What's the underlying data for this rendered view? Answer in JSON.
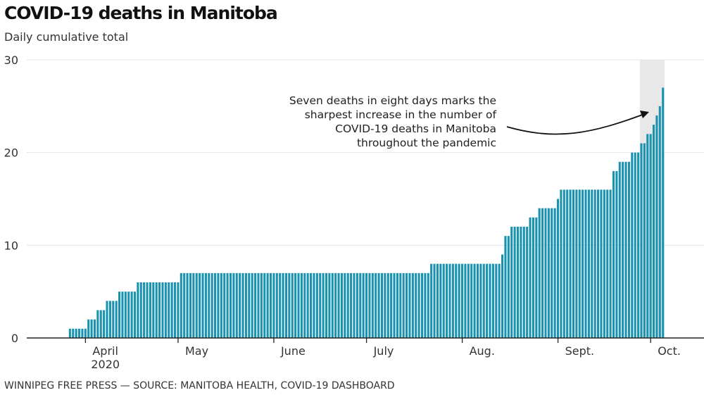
{
  "chart_data": {
    "type": "bar",
    "title": "COVID-19 deaths in Manitoba",
    "subtitle": "Daily cumulative total",
    "source": "WINNIPEG FREE PRESS — SOURCE: MANITOBA HEALTH, COVID-19 DASHBOARD",
    "xlabel": "",
    "ylabel": "",
    "ylim": [
      0,
      30
    ],
    "yticks": [
      0,
      10,
      20,
      30
    ],
    "xlim": [
      "2020-03-13",
      "2020-10-16"
    ],
    "xticks": [
      {
        "date": "2020-04-01",
        "label": "April",
        "sublabel": "2020"
      },
      {
        "date": "2020-05-01",
        "label": "May"
      },
      {
        "date": "2020-06-01",
        "label": "June"
      },
      {
        "date": "2020-07-01",
        "label": "July"
      },
      {
        "date": "2020-08-01",
        "label": "Aug."
      },
      {
        "date": "2020-09-01",
        "label": "Sept."
      },
      {
        "date": "2020-10-01",
        "label": "Oct."
      }
    ],
    "grid": true,
    "bar_color": "#1a93b0",
    "daily_values_from_step_changes": [
      {
        "from": "2020-03-27",
        "value": 1
      },
      {
        "from": "2020-04-02",
        "value": 2
      },
      {
        "from": "2020-04-05",
        "value": 3
      },
      {
        "from": "2020-04-08",
        "value": 4
      },
      {
        "from": "2020-04-12",
        "value": 5
      },
      {
        "from": "2020-04-18",
        "value": 6
      },
      {
        "from": "2020-05-02",
        "value": 7
      },
      {
        "from": "2020-07-22",
        "value": 8
      },
      {
        "from": "2020-08-14",
        "value": 9
      },
      {
        "from": "2020-08-15",
        "value": 11
      },
      {
        "from": "2020-08-17",
        "value": 12
      },
      {
        "from": "2020-08-23",
        "value": 13
      },
      {
        "from": "2020-08-26",
        "value": 14
      },
      {
        "from": "2020-09-01",
        "value": 15
      },
      {
        "from": "2020-09-02",
        "value": 16
      },
      {
        "from": "2020-09-19",
        "value": 18
      },
      {
        "from": "2020-09-21",
        "value": 19
      },
      {
        "from": "2020-09-25",
        "value": 20
      },
      {
        "from": "2020-09-28",
        "value": 21
      },
      {
        "from": "2020-09-30",
        "value": 22
      },
      {
        "from": "2020-10-02",
        "value": 23
      },
      {
        "from": "2020-10-03",
        "value": 24
      },
      {
        "from": "2020-10-04",
        "value": 25
      },
      {
        "from": "2020-10-05",
        "value": 27
      }
    ],
    "last_date": "2020-10-05",
    "highlight": {
      "from": "2020-09-28",
      "to": "2020-10-05",
      "color": "#e8e8e8"
    },
    "annotation": {
      "lines": [
        "Seven deaths in eight days marks the",
        "sharpest increase in the number of",
        "COVID-19 deaths in Manitoba",
        "throughout the pandemic"
      ]
    }
  }
}
